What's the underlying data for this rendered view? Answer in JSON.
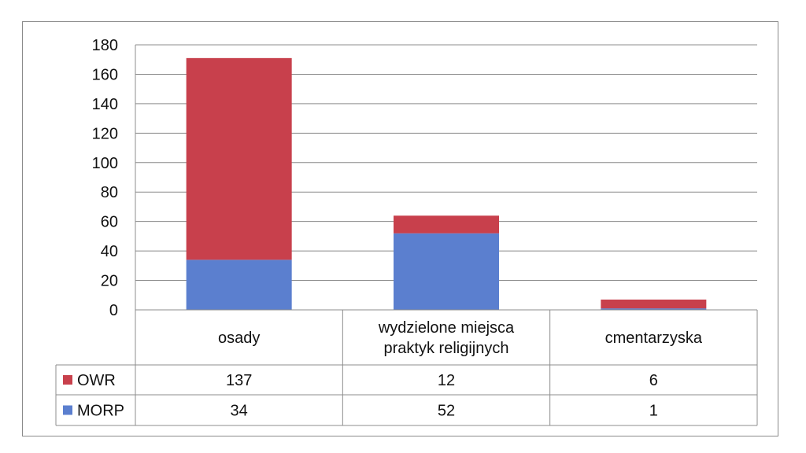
{
  "chart_data": {
    "type": "bar",
    "stacked": true,
    "categories": [
      [
        "osady"
      ],
      [
        "wydzielone miejsca",
        "praktyk religijnych"
      ],
      [
        "cmentarzyska"
      ]
    ],
    "series": [
      {
        "name": "MORP",
        "values": [
          34,
          52,
          1
        ],
        "color": "#5b7fcf"
      },
      {
        "name": "OWR",
        "values": [
          137,
          12,
          6
        ],
        "color": "#c8404c"
      }
    ],
    "table_rows": [
      {
        "name": "OWR",
        "values": [
          "137",
          "12",
          "6"
        ],
        "color": "#c8404c"
      },
      {
        "name": "MORP",
        "values": [
          "34",
          "52",
          "1"
        ],
        "color": "#5b7fcf"
      }
    ],
    "yticks": [
      "0",
      "20",
      "40",
      "60",
      "80",
      "100",
      "120",
      "140",
      "160",
      "180"
    ],
    "ylim": [
      0,
      180
    ],
    "grid": true,
    "legend": "data-table"
  }
}
